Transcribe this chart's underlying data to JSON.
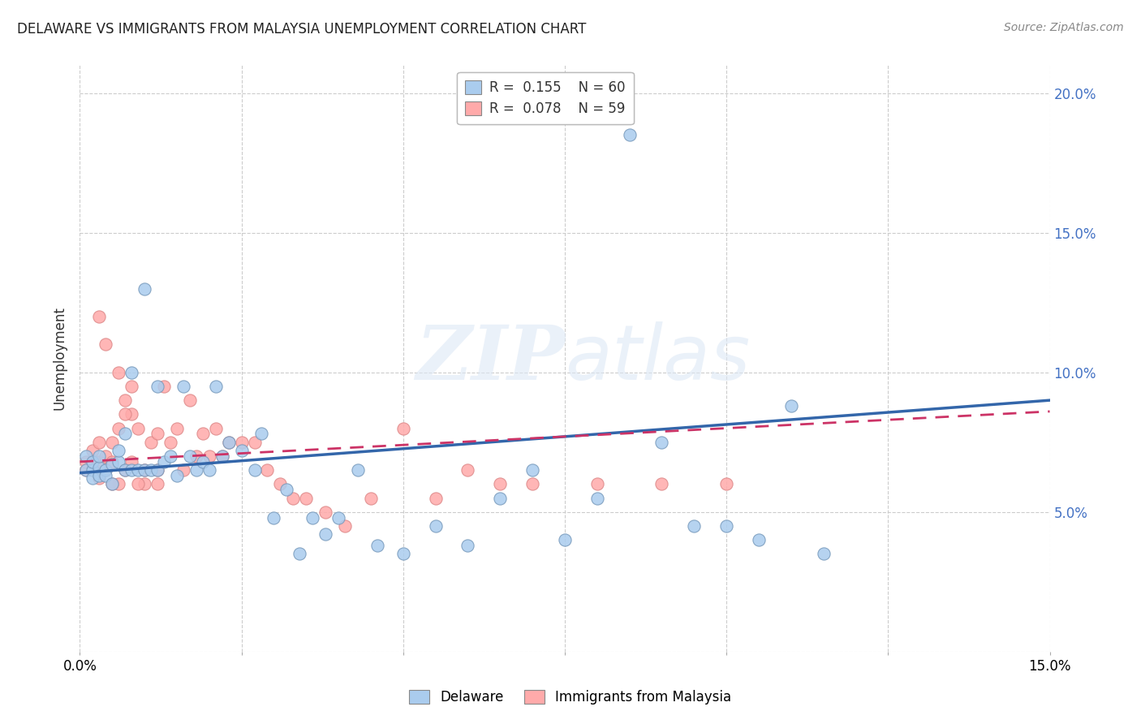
{
  "title": "DELAWARE VS IMMIGRANTS FROM MALAYSIA UNEMPLOYMENT CORRELATION CHART",
  "source": "Source: ZipAtlas.com",
  "ylabel": "Unemployment",
  "xlim": [
    0,
    0.15
  ],
  "ylim": [
    0,
    0.21
  ],
  "ytick_vals": [
    0,
    0.05,
    0.1,
    0.15,
    0.2
  ],
  "xtick_vals": [
    0,
    0.025,
    0.05,
    0.075,
    0.1,
    0.125,
    0.15
  ],
  "grid_color": "#cccccc",
  "background_color": "#ffffff",
  "watermark_zip": "ZIP",
  "watermark_atlas": "atlas",
  "blue_color": "#aaccee",
  "pink_color": "#ffaaaa",
  "blue_edge_color": "#7799bb",
  "pink_edge_color": "#dd8888",
  "blue_line_color": "#3366aa",
  "pink_line_color": "#cc3366",
  "delaware_label": "Delaware",
  "malaysia_label": "Immigrants from Malaysia",
  "legend_text1": "R =  0.155    N = 60",
  "legend_text2": "R =  0.078    N = 59",
  "blue_trendline": [
    0.064,
    0.09
  ],
  "pink_trendline": [
    0.068,
    0.086
  ],
  "blue_x": [
    0.001,
    0.001,
    0.002,
    0.002,
    0.002,
    0.003,
    0.003,
    0.003,
    0.004,
    0.004,
    0.005,
    0.005,
    0.006,
    0.006,
    0.007,
    0.007,
    0.008,
    0.008,
    0.009,
    0.01,
    0.01,
    0.011,
    0.012,
    0.012,
    0.013,
    0.014,
    0.015,
    0.016,
    0.017,
    0.018,
    0.019,
    0.02,
    0.021,
    0.022,
    0.023,
    0.025,
    0.027,
    0.028,
    0.03,
    0.032,
    0.034,
    0.036,
    0.038,
    0.04,
    0.043,
    0.046,
    0.05,
    0.055,
    0.06,
    0.065,
    0.07,
    0.075,
    0.08,
    0.085,
    0.09,
    0.095,
    0.1,
    0.105,
    0.11,
    0.115
  ],
  "blue_y": [
    0.065,
    0.07,
    0.065,
    0.068,
    0.062,
    0.066,
    0.063,
    0.07,
    0.065,
    0.063,
    0.067,
    0.06,
    0.068,
    0.072,
    0.065,
    0.078,
    0.065,
    0.1,
    0.065,
    0.065,
    0.13,
    0.065,
    0.095,
    0.065,
    0.068,
    0.07,
    0.063,
    0.095,
    0.07,
    0.065,
    0.068,
    0.065,
    0.095,
    0.07,
    0.075,
    0.072,
    0.065,
    0.078,
    0.048,
    0.058,
    0.035,
    0.048,
    0.042,
    0.048,
    0.065,
    0.038,
    0.035,
    0.045,
    0.038,
    0.055,
    0.065,
    0.04,
    0.055,
    0.185,
    0.075,
    0.045,
    0.045,
    0.04,
    0.088,
    0.035
  ],
  "pink_x": [
    0.001,
    0.001,
    0.002,
    0.002,
    0.003,
    0.003,
    0.003,
    0.004,
    0.004,
    0.005,
    0.005,
    0.006,
    0.006,
    0.007,
    0.007,
    0.008,
    0.008,
    0.009,
    0.01,
    0.011,
    0.012,
    0.012,
    0.013,
    0.014,
    0.015,
    0.016,
    0.017,
    0.018,
    0.019,
    0.02,
    0.021,
    0.022,
    0.023,
    0.025,
    0.027,
    0.029,
    0.031,
    0.033,
    0.035,
    0.038,
    0.041,
    0.045,
    0.05,
    0.055,
    0.06,
    0.065,
    0.07,
    0.08,
    0.09,
    0.1,
    0.003,
    0.004,
    0.005,
    0.006,
    0.007,
    0.008,
    0.009,
    0.01,
    0.012
  ],
  "pink_y": [
    0.065,
    0.068,
    0.072,
    0.065,
    0.068,
    0.075,
    0.062,
    0.07,
    0.065,
    0.075,
    0.068,
    0.08,
    0.06,
    0.09,
    0.065,
    0.085,
    0.068,
    0.08,
    0.06,
    0.075,
    0.078,
    0.065,
    0.095,
    0.075,
    0.08,
    0.065,
    0.09,
    0.07,
    0.078,
    0.07,
    0.08,
    0.07,
    0.075,
    0.075,
    0.075,
    0.065,
    0.06,
    0.055,
    0.055,
    0.05,
    0.045,
    0.055,
    0.08,
    0.055,
    0.065,
    0.06,
    0.06,
    0.06,
    0.06,
    0.06,
    0.12,
    0.11,
    0.06,
    0.1,
    0.085,
    0.095,
    0.06,
    0.065,
    0.06
  ]
}
